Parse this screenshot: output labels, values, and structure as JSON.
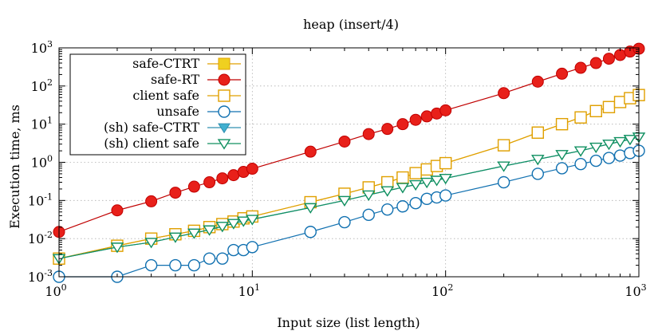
{
  "chart_data": {
    "type": "line",
    "title": "heap (insert/4)",
    "xlabel": "Input size (list length)",
    "ylabel": "Execution time, ms",
    "x_scale": "log",
    "y_scale": "log",
    "xlim": [
      1,
      1000
    ],
    "ylim": [
      0.001,
      1000
    ],
    "grid": true,
    "legend_position": "top-left",
    "x_ticks": [
      {
        "value": 1,
        "base": "10",
        "exp": "0"
      },
      {
        "value": 10,
        "base": "10",
        "exp": "1"
      },
      {
        "value": 100,
        "base": "10",
        "exp": "2"
      },
      {
        "value": 1000,
        "base": "10",
        "exp": "3"
      }
    ],
    "y_ticks": [
      {
        "value": 0.001,
        "base": "10",
        "exp": "-3"
      },
      {
        "value": 0.01,
        "base": "10",
        "exp": "-2"
      },
      {
        "value": 0.1,
        "base": "10",
        "exp": "-1"
      },
      {
        "value": 1,
        "base": "10",
        "exp": "0"
      },
      {
        "value": 10,
        "base": "10",
        "exp": "1"
      },
      {
        "value": 100,
        "base": "10",
        "exp": "2"
      },
      {
        "value": 1000,
        "base": "10",
        "exp": "3"
      }
    ],
    "series": [
      {
        "name": "safe-CTRT",
        "color": "#f0d020",
        "stroke": "#e0a000",
        "marker": "square-filled",
        "x": [
          1,
          2,
          3,
          4,
          5,
          6,
          7,
          8,
          9,
          10,
          20,
          30,
          40,
          50,
          60,
          70,
          80,
          90,
          100,
          200,
          300,
          400,
          500,
          600,
          700,
          800,
          900,
          1000
        ],
        "y": [
          0.003,
          0.0065,
          0.01,
          0.013,
          0.016,
          0.02,
          0.024,
          0.028,
          0.034,
          0.038,
          0.09,
          0.15,
          0.22,
          0.3,
          0.4,
          0.52,
          0.65,
          0.8,
          0.95,
          2.8,
          6,
          10,
          15,
          22,
          28,
          38,
          48,
          58
        ]
      },
      {
        "name": "safe-RT",
        "color": "#e8201a",
        "stroke": "#c00000",
        "marker": "circle-filled",
        "x": [
          1,
          2,
          3,
          4,
          5,
          6,
          7,
          8,
          9,
          10,
          20,
          30,
          40,
          50,
          60,
          70,
          80,
          90,
          100,
          200,
          300,
          400,
          500,
          600,
          700,
          800,
          900,
          1000
        ],
        "y": [
          0.015,
          0.055,
          0.095,
          0.16,
          0.23,
          0.3,
          0.38,
          0.46,
          0.56,
          0.68,
          1.9,
          3.5,
          5.5,
          7.5,
          10,
          13,
          16,
          19,
          23,
          65,
          130,
          210,
          300,
          400,
          520,
          650,
          800,
          950
        ]
      },
      {
        "name": "client safe",
        "color": "#e0a000",
        "stroke": "#e0a000",
        "marker": "square-open",
        "x": [
          1,
          2,
          3,
          4,
          5,
          6,
          7,
          8,
          9,
          10,
          20,
          30,
          40,
          50,
          60,
          70,
          80,
          90,
          100,
          200,
          300,
          400,
          500,
          600,
          700,
          800,
          900,
          1000
        ],
        "y": [
          0.003,
          0.0065,
          0.01,
          0.013,
          0.016,
          0.02,
          0.024,
          0.028,
          0.034,
          0.038,
          0.09,
          0.15,
          0.22,
          0.3,
          0.4,
          0.52,
          0.65,
          0.8,
          0.95,
          2.8,
          6,
          10,
          15,
          22,
          28,
          38,
          48,
          58
        ]
      },
      {
        "name": "unsafe",
        "color": "#1070b0",
        "stroke": "#1070b0",
        "marker": "circle-open",
        "x": [
          1,
          2,
          3,
          4,
          5,
          6,
          7,
          8,
          9,
          10,
          20,
          30,
          40,
          50,
          60,
          70,
          80,
          90,
          100,
          200,
          300,
          400,
          500,
          600,
          700,
          800,
          900,
          1000
        ],
        "y": [
          0.001,
          0.001,
          0.002,
          0.002,
          0.002,
          0.003,
          0.003,
          0.005,
          0.005,
          0.006,
          0.015,
          0.027,
          0.042,
          0.058,
          0.07,
          0.085,
          0.11,
          0.12,
          0.135,
          0.3,
          0.5,
          0.7,
          0.9,
          1.1,
          1.3,
          1.5,
          1.75,
          2.0
        ]
      },
      {
        "name": "(sh) safe-CTRT",
        "color": "#40b0d0",
        "stroke": "#3090b0",
        "marker": "triangle-down-filled",
        "x": [
          1,
          2,
          3,
          4,
          5,
          6,
          7,
          8,
          9,
          10,
          20,
          30,
          40,
          50,
          60,
          70,
          80,
          90,
          100,
          200,
          300,
          400,
          500,
          600,
          700,
          800,
          900,
          1000
        ],
        "y": [
          0.003,
          0.006,
          0.008,
          0.011,
          0.014,
          0.017,
          0.021,
          0.025,
          0.029,
          0.032,
          0.065,
          0.1,
          0.14,
          0.18,
          0.22,
          0.26,
          0.3,
          0.34,
          0.38,
          0.8,
          1.2,
          1.6,
          2.0,
          2.5,
          3.0,
          3.5,
          4.0,
          4.6
        ]
      },
      {
        "name": "(sh) client safe",
        "color": "#109060",
        "stroke": "#109060",
        "marker": "triangle-down-open",
        "x": [
          1,
          2,
          3,
          4,
          5,
          6,
          7,
          8,
          9,
          10,
          20,
          30,
          40,
          50,
          60,
          70,
          80,
          90,
          100,
          200,
          300,
          400,
          500,
          600,
          700,
          800,
          900,
          1000
        ],
        "y": [
          0.003,
          0.006,
          0.008,
          0.011,
          0.014,
          0.017,
          0.021,
          0.025,
          0.029,
          0.032,
          0.065,
          0.1,
          0.14,
          0.18,
          0.22,
          0.26,
          0.3,
          0.34,
          0.38,
          0.8,
          1.2,
          1.6,
          2.0,
          2.5,
          3.0,
          3.5,
          4.0,
          4.6
        ]
      }
    ]
  }
}
